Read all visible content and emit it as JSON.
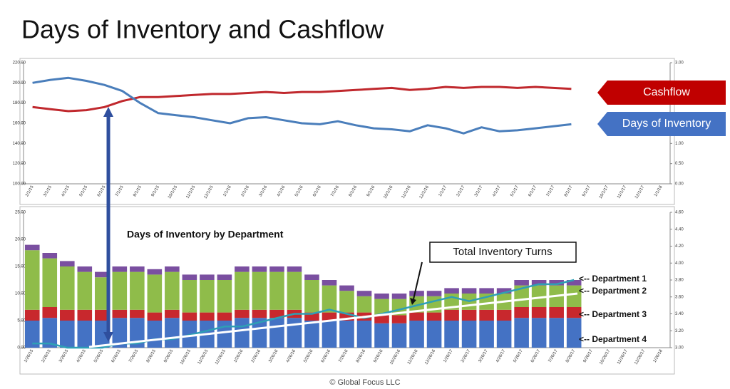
{
  "title": "Days of Inventory and Cashflow",
  "footer": "© Global Focus LLC",
  "chart_data": [
    {
      "type": "line",
      "categories": [
        "2/1/15",
        "3/1/15",
        "4/1/15",
        "5/1/15",
        "6/1/15",
        "7/1/15",
        "8/1/15",
        "9/1/15",
        "10/1/15",
        "11/1/15",
        "12/1/15",
        "1/1/16",
        "2/1/16",
        "3/1/16",
        "4/1/16",
        "5/1/16",
        "6/1/16",
        "7/1/16",
        "8/1/16",
        "9/1/16",
        "10/1/16",
        "11/1/16",
        "12/1/16",
        "1/1/17",
        "2/1/17",
        "3/1/17",
        "4/1/17",
        "5/1/17",
        "6/1/17",
        "7/1/17",
        "8/1/17",
        "9/1/17",
        "10/1/17",
        "11/1/17",
        "12/1/17",
        "1/1/18"
      ],
      "ylim": [
        100,
        220
      ],
      "yticks": [
        {
          "value": 100,
          "label": "100.00"
        },
        {
          "value": 120,
          "label": "120.00"
        },
        {
          "value": 140,
          "label": "140.00"
        },
        {
          "value": 160,
          "label": "160.00"
        },
        {
          "value": 180,
          "label": "180.00"
        },
        {
          "value": 200,
          "label": "200.00"
        },
        {
          "value": 220,
          "label": "220.00"
        }
      ],
      "y2lim": [
        0,
        3
      ],
      "y2ticks": [
        {
          "value": 0,
          "label": "0.00"
        },
        {
          "value": 0.5,
          "label": "0.50"
        },
        {
          "value": 1,
          "label": "1.00"
        },
        {
          "value": 1.5,
          "label": "1.50"
        },
        {
          "value": 2,
          "label": "2.00"
        },
        {
          "value": 2.5,
          "label": "2.50"
        },
        {
          "value": 3,
          "label": "3.00"
        }
      ],
      "grid": false,
      "series": [
        {
          "name": "Cashflow",
          "color": "#c0282d",
          "values": [
            176,
            174,
            172,
            173,
            176,
            182,
            186,
            186,
            187,
            188,
            189,
            189,
            190,
            191,
            190,
            191,
            191,
            192,
            193,
            194,
            195,
            193,
            194,
            196,
            195,
            196,
            196,
            195,
            196,
            195,
            194,
            null,
            null,
            null,
            null,
            null
          ]
        },
        {
          "name": "Days of Inventory",
          "color": "#4a7ebb",
          "values": [
            200,
            203,
            205,
            202,
            198,
            192,
            180,
            170,
            168,
            166,
            163,
            160,
            165,
            166,
            163,
            160,
            159,
            162,
            158,
            155,
            154,
            152,
            158,
            155,
            150,
            156,
            152,
            153,
            155,
            157,
            159,
            null,
            null,
            null,
            null,
            null
          ]
        }
      ]
    },
    {
      "type": "bar",
      "title": "Days of Inventory by Department",
      "categories": [
        "1/26/15",
        "2/26/15",
        "3/26/15",
        "4/26/15",
        "5/26/15",
        "6/26/15",
        "7/26/15",
        "8/26/15",
        "9/26/15",
        "10/26/15",
        "11/26/15",
        "12/26/15",
        "1/26/16",
        "2/26/16",
        "3/26/16",
        "4/26/16",
        "5/26/16",
        "6/26/16",
        "7/26/16",
        "8/26/16",
        "9/26/16",
        "10/26/16",
        "11/26/16",
        "12/26/16",
        "1/26/17",
        "2/26/17",
        "3/26/17",
        "4/26/17",
        "5/26/17",
        "6/26/17",
        "7/26/17",
        "8/26/17",
        "9/26/17",
        "10/26/17",
        "11/26/17",
        "12/26/17",
        "1/26/18"
      ],
      "ylim": [
        0,
        25
      ],
      "yticks": [
        {
          "value": 0,
          "label": "0.00"
        },
        {
          "value": 5,
          "label": "5.00"
        },
        {
          "value": 10,
          "label": "10.00"
        },
        {
          "value": 15,
          "label": "15.00"
        },
        {
          "value": 20,
          "label": "20.00"
        },
        {
          "value": 25,
          "label": "25.00"
        }
      ],
      "y2lim": [
        3,
        4.6
      ],
      "y2ticks": [
        {
          "value": 3,
          "label": "3.00"
        },
        {
          "value": 3.2,
          "label": "3.20"
        },
        {
          "value": 3.4,
          "label": "3.40"
        },
        {
          "value": 3.6,
          "label": "3.60"
        },
        {
          "value": 3.8,
          "label": "3.80"
        },
        {
          "value": 4,
          "label": "4.00"
        },
        {
          "value": 4.2,
          "label": "4.20"
        },
        {
          "value": 4.4,
          "label": "4.40"
        },
        {
          "value": 4.6,
          "label": "4.60"
        }
      ],
      "grid": false,
      "series": [
        {
          "name": "<-- Department 4",
          "color": "#4472c4",
          "values": [
            5,
            5.5,
            5,
            5,
            5,
            5.5,
            5.5,
            5,
            5.5,
            5,
            5,
            5,
            5.5,
            5.5,
            5.5,
            5.5,
            5,
            5,
            5,
            5,
            4.5,
            4.5,
            5,
            5,
            5,
            5,
            5,
            5,
            5.5,
            5.5,
            5.5,
            5.5,
            null,
            null,
            null,
            null,
            null
          ]
        },
        {
          "name": "<-- Department 3",
          "color": "#c8282d",
          "values": [
            2,
            2,
            2,
            2,
            2,
            1.5,
            1.5,
            1.5,
            1.5,
            1.5,
            1.5,
            1.5,
            1.5,
            1.5,
            1.5,
            1.5,
            1.5,
            1.5,
            1.5,
            1.5,
            1.5,
            1.5,
            1.5,
            1.5,
            2,
            2,
            2,
            2,
            2,
            2,
            2,
            2,
            null,
            null,
            null,
            null,
            null
          ]
        },
        {
          "name": "<-- Department 2",
          "color": "#8fbc4a",
          "values": [
            11,
            9,
            8,
            7,
            6,
            7,
            7,
            7,
            7,
            6,
            6,
            6,
            7,
            7,
            7,
            7,
            6,
            5,
            4,
            3,
            3,
            3,
            3,
            3,
            3,
            3,
            3,
            3,
            4,
            4,
            4,
            4,
            null,
            null,
            null,
            null,
            null
          ]
        },
        {
          "name": "<-- Department 1",
          "color": "#7a4fa0",
          "values": [
            1,
            1,
            1,
            1,
            1,
            1,
            1,
            1,
            1,
            1,
            1,
            1,
            1,
            1,
            1,
            1,
            1,
            1,
            1,
            1,
            1,
            1,
            1,
            1,
            1,
            1,
            1,
            1,
            1,
            1,
            1,
            1,
            null,
            null,
            null,
            null,
            null
          ]
        },
        {
          "name": "Total Inventory Turns",
          "type": "line",
          "axis": "y2",
          "color": "#2e9fb5",
          "values": [
            3.05,
            3.05,
            3,
            3,
            3,
            3.05,
            3.05,
            3.1,
            3.1,
            3.15,
            3.2,
            3.25,
            3.25,
            3.3,
            3.35,
            3.4,
            3.4,
            3.45,
            3.4,
            3.35,
            3.4,
            3.45,
            3.5,
            3.55,
            3.6,
            3.55,
            3.6,
            3.65,
            3.7,
            3.75,
            3.75,
            3.8,
            null,
            null,
            null,
            null,
            null
          ]
        }
      ]
    }
  ]
}
